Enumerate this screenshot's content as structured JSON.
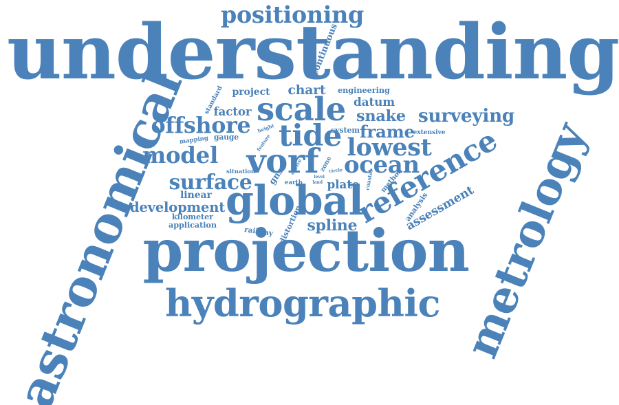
{
  "word_cloud": {
    "color": "#4a82b9",
    "words": [
      "understanding",
      "projection",
      "metrology",
      "astronomical",
      "hydrographic",
      "global",
      "reference",
      "scale",
      "model",
      "vorf",
      "positioning",
      "offshore",
      "tide",
      "surveying",
      "ocean",
      "lowest",
      "surface",
      "frame",
      "development",
      "snake",
      "datum",
      "spline",
      "plate",
      "assessment",
      "chart",
      "factor",
      "linear",
      "application",
      "project",
      "engineering",
      "continuous",
      "analysis",
      "system",
      "extensive",
      "kilometer",
      "distortion",
      "gauge",
      "mapping",
      "situation",
      "gns",
      "earth",
      "method",
      "coastal",
      "standard",
      "height",
      "feature",
      "derive",
      "zone",
      "circle",
      "level",
      "land",
      "railway"
    ]
  }
}
